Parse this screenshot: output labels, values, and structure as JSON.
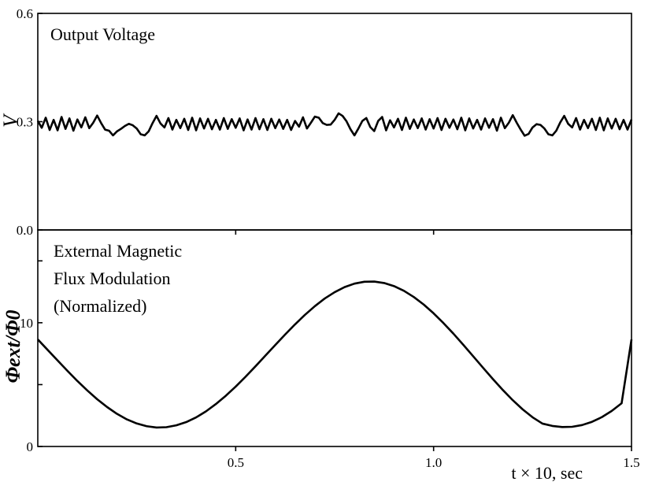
{
  "chart_data": [
    {
      "type": "line",
      "panel": "top",
      "annotation": "Output Voltage",
      "ylabel": "V",
      "ylim": [
        0.0,
        0.6
      ],
      "yticks": [
        {
          "value": 0.0,
          "label": "0.0"
        },
        {
          "value": 0.3,
          "label": "0.3"
        },
        {
          "value": 0.6,
          "label": "0.6"
        }
      ],
      "xlim": [
        0.0,
        1.5
      ],
      "series": [
        {
          "x": [
            0.0,
            0.01,
            0.02,
            0.03,
            0.04,
            0.05,
            0.06,
            0.07,
            0.08,
            0.09,
            0.1,
            0.11,
            0.12,
            0.13,
            0.14,
            0.15,
            0.16,
            0.17,
            0.18,
            0.19,
            0.2,
            0.21,
            0.22,
            0.23,
            0.24,
            0.25,
            0.26,
            0.27,
            0.28,
            0.29,
            0.3,
            0.31,
            0.32,
            0.33,
            0.34,
            0.35,
            0.36,
            0.37,
            0.38,
            0.39,
            0.4,
            0.41,
            0.42,
            0.43,
            0.44,
            0.45,
            0.46,
            0.47,
            0.48,
            0.49,
            0.5,
            0.51,
            0.52,
            0.53,
            0.54,
            0.55,
            0.56,
            0.57,
            0.58,
            0.59,
            0.6,
            0.61,
            0.62,
            0.63,
            0.64,
            0.65,
            0.66,
            0.67,
            0.68,
            0.69,
            0.7,
            0.71,
            0.72,
            0.73,
            0.74,
            0.75,
            0.76,
            0.77,
            0.78,
            0.79,
            0.8,
            0.81,
            0.82,
            0.83,
            0.84,
            0.85,
            0.86,
            0.87,
            0.88,
            0.89,
            0.9,
            0.91,
            0.92,
            0.93,
            0.94,
            0.95,
            0.96,
            0.97,
            0.98,
            0.99,
            1.0,
            1.01,
            1.02,
            1.03,
            1.04,
            1.05,
            1.06,
            1.07,
            1.08,
            1.09,
            1.1,
            1.11,
            1.12,
            1.13,
            1.14,
            1.15,
            1.16,
            1.17,
            1.18,
            1.19,
            1.2,
            1.21,
            1.22,
            1.23,
            1.24,
            1.25,
            1.26,
            1.27,
            1.28,
            1.29,
            1.3,
            1.31,
            1.32,
            1.33,
            1.34,
            1.35,
            1.36,
            1.37,
            1.38,
            1.39,
            1.4,
            1.41,
            1.42,
            1.43,
            1.44,
            1.45,
            1.46,
            1.47,
            1.48,
            1.49,
            1.5
          ],
          "y": [
            0.302,
            0.283,
            0.311,
            0.277,
            0.305,
            0.276,
            0.313,
            0.28,
            0.309,
            0.275,
            0.306,
            0.284,
            0.312,
            0.282,
            0.297,
            0.317,
            0.296,
            0.278,
            0.275,
            0.262,
            0.273,
            0.28,
            0.288,
            0.294,
            0.29,
            0.281,
            0.265,
            0.262,
            0.273,
            0.296,
            0.316,
            0.295,
            0.284,
            0.31,
            0.278,
            0.305,
            0.282,
            0.308,
            0.277,
            0.311,
            0.276,
            0.309,
            0.281,
            0.308,
            0.279,
            0.305,
            0.278,
            0.31,
            0.28,
            0.307,
            0.283,
            0.309,
            0.276,
            0.306,
            0.278,
            0.31,
            0.279,
            0.307,
            0.277,
            0.308,
            0.282,
            0.306,
            0.28,
            0.305,
            0.277,
            0.302,
            0.286,
            0.312,
            0.281,
            0.297,
            0.314,
            0.311,
            0.296,
            0.291,
            0.292,
            0.305,
            0.323,
            0.316,
            0.301,
            0.279,
            0.262,
            0.281,
            0.302,
            0.31,
            0.285,
            0.274,
            0.302,
            0.313,
            0.276,
            0.304,
            0.284,
            0.308,
            0.277,
            0.311,
            0.28,
            0.306,
            0.282,
            0.309,
            0.278,
            0.307,
            0.281,
            0.31,
            0.277,
            0.308,
            0.283,
            0.306,
            0.279,
            0.311,
            0.276,
            0.309,
            0.281,
            0.305,
            0.278,
            0.309,
            0.283,
            0.307,
            0.275,
            0.311,
            0.282,
            0.297,
            0.318,
            0.297,
            0.278,
            0.261,
            0.266,
            0.284,
            0.293,
            0.291,
            0.281,
            0.265,
            0.262,
            0.275,
            0.298,
            0.316,
            0.294,
            0.284,
            0.31,
            0.278,
            0.305,
            0.282,
            0.308,
            0.277,
            0.311,
            0.276,
            0.309,
            0.281,
            0.308,
            0.279,
            0.305,
            0.278,
            0.306
          ]
        }
      ]
    },
    {
      "type": "line",
      "panel": "bottom",
      "annotation": [
        "External Magnetic",
        "Flux Modulation",
        "(Normalized)"
      ],
      "ylabel": "Φext/Φ0",
      "ylim": [
        0,
        17.5
      ],
      "yticks": [
        {
          "value": 0,
          "label": "0"
        },
        {
          "value": 10,
          "label": "10"
        }
      ],
      "xlim": [
        0.0,
        1.5
      ],
      "xticks": [
        {
          "value": 0.5,
          "label": "0.5"
        },
        {
          "value": 1.0,
          "label": "1.0"
        },
        {
          "value": 1.5,
          "label": "1.5"
        }
      ],
      "xlabel": "t × 10, sec",
      "series": [
        {
          "x": [
            0.0,
            0.025,
            0.05,
            0.075,
            0.1,
            0.125,
            0.15,
            0.175,
            0.2,
            0.225,
            0.25,
            0.275,
            0.3,
            0.325,
            0.35,
            0.375,
            0.4,
            0.425,
            0.45,
            0.475,
            0.5,
            0.525,
            0.55,
            0.575,
            0.6,
            0.625,
            0.65,
            0.675,
            0.7,
            0.725,
            0.75,
            0.775,
            0.8,
            0.825,
            0.85,
            0.875,
            0.9,
            0.925,
            0.95,
            0.975,
            1.0,
            1.025,
            1.05,
            1.075,
            1.1,
            1.125,
            1.15,
            1.175,
            1.2,
            1.225,
            1.25,
            1.275,
            1.3,
            1.325,
            1.35,
            1.375,
            1.4,
            1.425,
            1.45,
            1.475,
            1.5
          ],
          "y": [
            8.65,
            7.8,
            6.95,
            6.11,
            5.29,
            4.53,
            3.82,
            3.19,
            2.64,
            2.19,
            1.86,
            1.64,
            1.53,
            1.56,
            1.71,
            1.97,
            2.35,
            2.84,
            3.43,
            4.1,
            4.84,
            5.64,
            6.48,
            7.34,
            8.2,
            9.05,
            9.87,
            10.64,
            11.34,
            11.96,
            12.47,
            12.88,
            13.16,
            13.31,
            13.33,
            13.21,
            12.96,
            12.58,
            12.08,
            11.47,
            10.76,
            9.97,
            9.12,
            8.22,
            7.29,
            6.36,
            5.44,
            4.56,
            3.74,
            3.0,
            2.36,
            1.85,
            1.66,
            1.57,
            1.59,
            1.73,
            1.99,
            2.37,
            2.87,
            3.49,
            8.65
          ]
        }
      ]
    }
  ]
}
